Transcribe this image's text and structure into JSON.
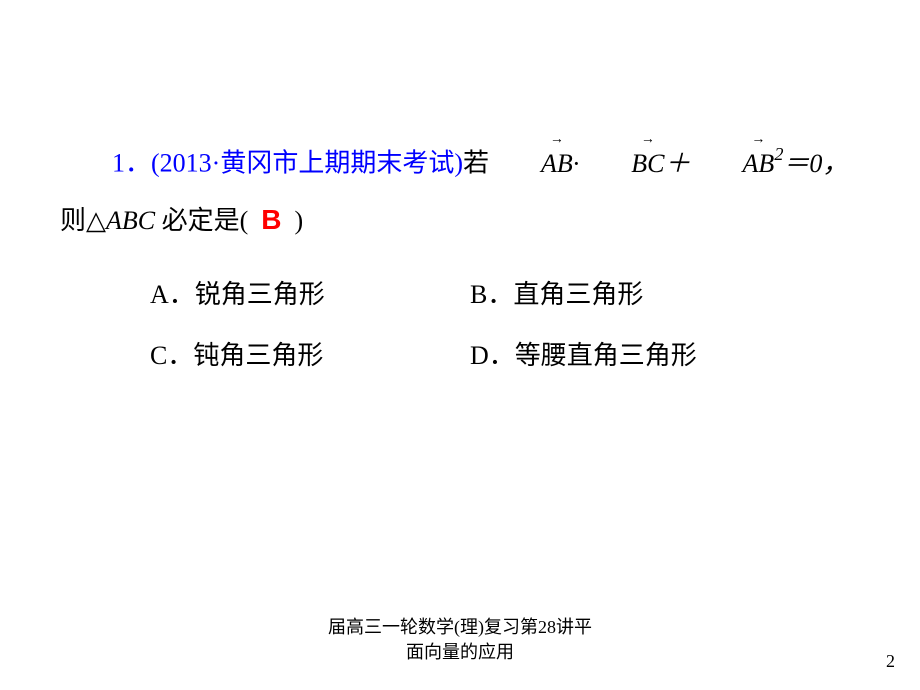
{
  "question": {
    "number": "1",
    "source_prefix": "．(2013·",
    "source": "黄冈市上期期末考试",
    "source_suffix": ")",
    "text_after_source": "若",
    "expr_ab1": "AB",
    "expr_dot": "·",
    "expr_bc": "BC",
    "expr_plus": "＋",
    "expr_ab2": "AB",
    "expr_sq": "2",
    "expr_eq": "＝0，",
    "line2_prefix": "则",
    "triangle": "△",
    "abc": "ABC",
    "line2_suffix1": " 必定是(",
    "answer": "B",
    "line2_suffix2": ")"
  },
  "options": {
    "A": {
      "label": "A．",
      "text": "锐角三角形"
    },
    "B": {
      "label": "B．",
      "text": "直角三角形"
    },
    "C": {
      "label": "C．",
      "text": "钝角三角形"
    },
    "D": {
      "label": "D．",
      "text": "等腰直角三角形"
    }
  },
  "footer": {
    "line1": "届高三一轮数学(理)复习第28讲平",
    "line2": "面向量的应用"
  },
  "pageNumber": "2"
}
